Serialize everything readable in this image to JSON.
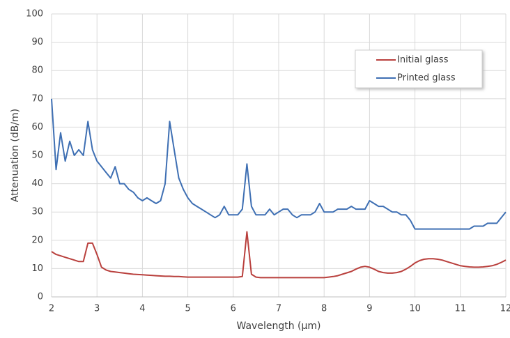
{
  "chart_data": {
    "type": "line",
    "xlabel": "Wavelength (μm)",
    "ylabel": "Attenuation (dB/m)",
    "x": [
      2.0,
      2.1,
      2.2,
      2.3,
      2.4,
      2.5,
      2.6,
      2.7,
      2.8,
      2.9,
      3.0,
      3.1,
      3.2,
      3.3,
      3.4,
      3.5,
      3.6,
      3.7,
      3.8,
      3.9,
      4.0,
      4.1,
      4.2,
      4.3,
      4.4,
      4.5,
      4.6,
      4.7,
      4.8,
      4.9,
      5.0,
      5.1,
      5.2,
      5.3,
      5.4,
      5.5,
      5.6,
      5.7,
      5.8,
      5.9,
      6.0,
      6.1,
      6.2,
      6.3,
      6.4,
      6.5,
      6.6,
      6.7,
      6.8,
      6.9,
      7.0,
      7.1,
      7.2,
      7.3,
      7.4,
      7.5,
      7.6,
      7.7,
      7.8,
      7.9,
      8.0,
      8.1,
      8.2,
      8.3,
      8.4,
      8.5,
      8.6,
      8.7,
      8.8,
      8.9,
      9.0,
      9.1,
      9.2,
      9.3,
      9.4,
      9.5,
      9.6,
      9.7,
      9.8,
      9.9,
      10.0,
      10.1,
      10.2,
      10.3,
      10.4,
      10.5,
      10.6,
      10.7,
      10.8,
      10.9,
      11.0,
      11.1,
      11.2,
      11.3,
      11.4,
      11.5,
      11.6,
      11.7,
      11.8,
      11.9,
      12.0
    ],
    "series": [
      {
        "name": "Initial glass",
        "color": "#b9403d",
        "values": [
          16,
          15,
          14.5,
          14,
          13.5,
          13,
          12.5,
          12.5,
          19,
          19,
          15,
          10.5,
          9.5,
          9,
          8.8,
          8.6,
          8.4,
          8.2,
          8,
          7.9,
          7.8,
          7.7,
          7.6,
          7.5,
          7.4,
          7.3,
          7.3,
          7.2,
          7.2,
          7.1,
          7,
          7,
          7,
          7,
          7,
          7,
          7,
          7,
          7,
          7,
          7,
          7,
          7.2,
          23,
          8,
          7,
          6.8,
          6.8,
          6.8,
          6.8,
          6.8,
          6.8,
          6.8,
          6.8,
          6.8,
          6.8,
          6.8,
          6.8,
          6.8,
          6.8,
          6.8,
          7,
          7.2,
          7.5,
          8,
          8.5,
          9,
          9.8,
          10.5,
          10.8,
          10.5,
          9.8,
          9,
          8.6,
          8.4,
          8.4,
          8.6,
          9,
          9.8,
          10.8,
          12,
          12.8,
          13.3,
          13.5,
          13.5,
          13.3,
          13,
          12.5,
          12,
          11.5,
          11,
          10.8,
          10.6,
          10.5,
          10.5,
          10.6,
          10.8,
          11,
          11.5,
          12.2,
          13
        ]
      },
      {
        "name": "Printed glass",
        "color": "#3e6fb3",
        "values": [
          70,
          45,
          58,
          48,
          55,
          50,
          52,
          50,
          62,
          52,
          48,
          46,
          44,
          42,
          46,
          40,
          40,
          38,
          37,
          35,
          34,
          35,
          34,
          33,
          34,
          40,
          62,
          52,
          42,
          38,
          35,
          33,
          32,
          31,
          30,
          29,
          28,
          29,
          32,
          29,
          29,
          29,
          31,
          47,
          32,
          29,
          29,
          29,
          31,
          29,
          30,
          31,
          31,
          29,
          28,
          29,
          29,
          29,
          30,
          33,
          30,
          30,
          30,
          31,
          31,
          31,
          32,
          31,
          31,
          31,
          34,
          33,
          32,
          32,
          31,
          30,
          30,
          29,
          29,
          27,
          24,
          24,
          24,
          24,
          24,
          24,
          24,
          24,
          24,
          24,
          24,
          24,
          24,
          25,
          25,
          25,
          26,
          26,
          26,
          28,
          30
        ]
      }
    ],
    "xlim": [
      2,
      12
    ],
    "xticks": [
      2,
      3,
      4,
      5,
      6,
      7,
      8,
      9,
      10,
      11,
      12
    ],
    "ylim": [
      0,
      100
    ],
    "yticks": [
      0,
      10,
      20,
      30,
      40,
      50,
      60,
      70,
      80,
      90,
      100
    ],
    "grid": true,
    "legend": "upper right"
  }
}
